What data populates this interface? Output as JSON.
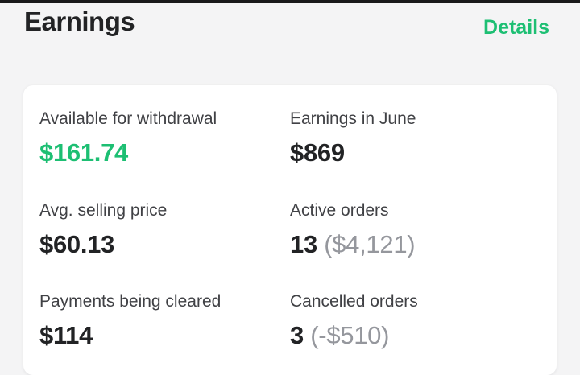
{
  "header": {
    "title": "Earnings",
    "details_label": "Details"
  },
  "colors": {
    "accent": "#1dbf73",
    "muted": "#95979d"
  },
  "stats": {
    "available": {
      "label": "Available for withdrawal",
      "value": "$161.74"
    },
    "month": {
      "label": "Earnings in June",
      "value": "$869"
    },
    "avg_price": {
      "label": "Avg. selling price",
      "value": "$60.13"
    },
    "active": {
      "label": "Active orders",
      "value": "13",
      "sub": "($4,121)"
    },
    "clearing": {
      "label": "Payments being cleared",
      "value": "$114"
    },
    "cancelled": {
      "label": "Cancelled orders",
      "value": "3",
      "sub": "(-$510)"
    }
  }
}
